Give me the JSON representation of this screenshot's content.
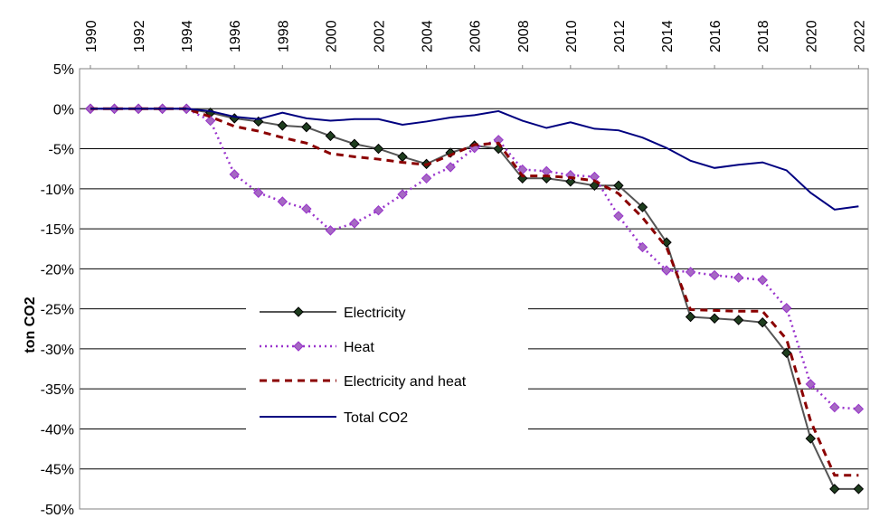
{
  "chart_data": {
    "type": "line",
    "y_label": "ton CO2",
    "x": [
      1990,
      1991,
      1992,
      1993,
      1994,
      1995,
      1996,
      1997,
      1998,
      1999,
      2000,
      2001,
      2002,
      2003,
      2004,
      2005,
      2006,
      2007,
      2008,
      2009,
      2010,
      2011,
      2012,
      2013,
      2014,
      2015,
      2016,
      2017,
      2018,
      2019,
      2020,
      2021,
      2022
    ],
    "xlim": [
      1989.55,
      2022.4
    ],
    "xticks": [
      1990,
      1992,
      1994,
      1996,
      1998,
      2000,
      2002,
      2004,
      2006,
      2008,
      2010,
      2012,
      2014,
      2016,
      2018,
      2020,
      2022
    ],
    "ylim": [
      -50,
      5
    ],
    "yticks": [
      {
        "value": 5,
        "label": "5%"
      },
      {
        "value": 0,
        "label": "0%"
      },
      {
        "value": -5,
        "label": "-5%"
      },
      {
        "value": -10,
        "label": "-10%"
      },
      {
        "value": -15,
        "label": "-15%"
      },
      {
        "value": -20,
        "label": "-20%"
      },
      {
        "value": -25,
        "label": "-25%"
      },
      {
        "value": -30,
        "label": "-30%"
      },
      {
        "value": -35,
        "label": "-35%"
      },
      {
        "value": -40,
        "label": "-40%"
      },
      {
        "value": -45,
        "label": "-45%"
      },
      {
        "value": -50,
        "label": "-50%"
      }
    ],
    "grid": true,
    "series": [
      {
        "name": "Electricity",
        "color": "#555555",
        "marker_color": "#1e3d1e",
        "line_style": "solid",
        "marker": "diamond",
        "values": [
          0,
          0,
          0,
          0,
          0,
          -0.5,
          -1.2,
          -1.6,
          -2.1,
          -2.3,
          -3.4,
          -4.4,
          -5.0,
          -6.0,
          -6.9,
          -5.5,
          -4.6,
          -5.0,
          -8.7,
          -8.7,
          -9.1,
          -9.6,
          -9.6,
          -12.3,
          -16.7,
          -26.0,
          -26.2,
          -26.4,
          -26.7,
          -30.5,
          -41.2,
          -47.5,
          -47.5
        ]
      },
      {
        "name": "Heat",
        "color": "#9933cc",
        "marker_color": "#a569c2",
        "line_style": "dotted",
        "marker": "diamond",
        "values": [
          0,
          0,
          0,
          0,
          0,
          -1.5,
          -8.2,
          -10.5,
          -11.6,
          -12.5,
          -15.2,
          -14.3,
          -12.7,
          -10.7,
          -8.7,
          -7.3,
          -4.9,
          -3.9,
          -7.6,
          -7.8,
          -8.3,
          -8.5,
          -13.4,
          -17.3,
          -20.2,
          -20.4,
          -20.8,
          -21.1,
          -21.4,
          -24.9,
          -34.4,
          -37.3,
          -37.5
        ]
      },
      {
        "name": "Electricity and heat",
        "color": "#8b0000",
        "line_style": "dashed",
        "marker": "none",
        "values": [
          0,
          0,
          0,
          0,
          0,
          -1.0,
          -2.2,
          -2.8,
          -3.6,
          -4.3,
          -5.6,
          -6.0,
          -6.3,
          -6.7,
          -7.0,
          -5.8,
          -4.5,
          -4.3,
          -8.4,
          -8.4,
          -8.6,
          -9.0,
          -10.6,
          -13.6,
          -17.3,
          -25.1,
          -25.2,
          -25.3,
          -25.3,
          -28.8,
          -39.0,
          -45.8,
          -45.8
        ]
      },
      {
        "name": "Total CO2",
        "color": "#000080",
        "line_style": "solid",
        "marker": "none",
        "values": [
          0,
          0,
          0,
          0,
          0,
          -0.3,
          -1.0,
          -1.3,
          -0.5,
          -1.2,
          -1.5,
          -1.3,
          -1.3,
          -2.0,
          -1.6,
          -1.1,
          -0.8,
          -0.3,
          -1.5,
          -2.4,
          -1.7,
          -2.5,
          -2.7,
          -3.6,
          -4.9,
          -6.5,
          -7.4,
          -7.0,
          -6.7,
          -7.7,
          -10.5,
          -12.6,
          -12.2
        ]
      }
    ]
  }
}
